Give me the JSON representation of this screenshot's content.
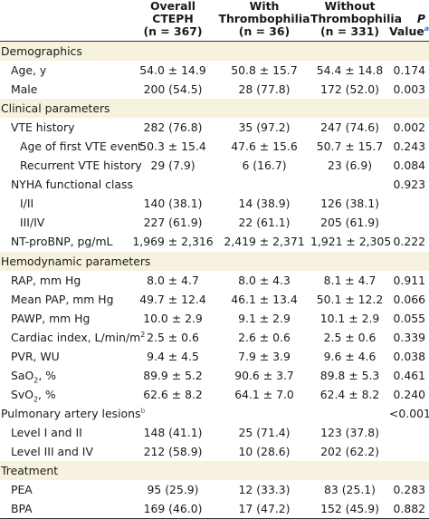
{
  "headers": [
    {
      "line1": "Overall",
      "line2": "CTEPH",
      "line3": "(n = 367)"
    },
    {
      "line1": "With",
      "line2": "Thrombophilia",
      "line3": "(n = 36)"
    },
    {
      "line1": "Without",
      "line2": "Thrombophilia",
      "line3": "(n = 331)"
    }
  ],
  "pvalue_header": {
    "italic": "P",
    "rest": " Value",
    "sup": "a"
  },
  "rows": [
    {
      "type": "section",
      "label": "Demographics"
    },
    {
      "type": "data",
      "indent": 1,
      "label": "Age, y",
      "overall": "54.0 ± 14.9",
      "with": "50.8 ± 15.7",
      "without": "54.4 ± 14.8",
      "p": "0.174"
    },
    {
      "type": "data",
      "indent": 1,
      "label": "Male",
      "overall": "200 (54.5)",
      "with": "28 (77.8)",
      "without": "172 (52.0)",
      "p": "0.003"
    },
    {
      "type": "section",
      "label": "Clinical parameters"
    },
    {
      "type": "data",
      "indent": 1,
      "label": "VTE history",
      "overall": "282 (76.8)",
      "with": "35 (97.2)",
      "without": "247 (74.6)",
      "p": "0.002"
    },
    {
      "type": "data",
      "indent": 2,
      "label": "Age of first VTE event",
      "overall": "50.3 ± 15.4",
      "with": "47.6 ± 15.6",
      "without": "50.7 ± 15.7",
      "p": "0.243"
    },
    {
      "type": "data",
      "indent": 2,
      "label": "Recurrent VTE history",
      "overall": "29 (7.9)",
      "with": "6 (16.7)",
      "without": "23 (6.9)",
      "p": "0.084"
    },
    {
      "type": "data",
      "indent": 1,
      "label": "NYHA functional class",
      "overall": "",
      "with": "",
      "without": "",
      "p": "0.923"
    },
    {
      "type": "data",
      "indent": 2,
      "label": "I/II",
      "overall": "140 (38.1)",
      "with": "14 (38.9)",
      "without": "126 (38.1)",
      "p": ""
    },
    {
      "type": "data",
      "indent": 2,
      "label": "III/IV",
      "overall": "227 (61.9)",
      "with": "22 (61.1)",
      "without": "205 (61.9)",
      "p": ""
    },
    {
      "type": "data",
      "indent": 1,
      "label": "NT-proBNP, pg/mL",
      "overall": "1,969 ± 2,316",
      "with": "2,419 ± 2,371",
      "without": "1,921 ± 2,305",
      "p": "0.222"
    },
    {
      "type": "section",
      "label": "Hemodynamic parameters"
    },
    {
      "type": "data",
      "indent": 1,
      "label": "RAP, mm Hg",
      "overall": "8.0 ± 4.7",
      "with": "8.0 ± 4.3",
      "without": "8.1 ± 4.7",
      "p": "0.911"
    },
    {
      "type": "data",
      "indent": 1,
      "label": "Mean PAP, mm Hg",
      "overall": "49.7 ± 12.4",
      "with": "46.1 ± 13.4",
      "without": "50.1 ± 12.2",
      "p": "0.066"
    },
    {
      "type": "data",
      "indent": 1,
      "label": "PAWP, mm Hg",
      "overall": "10.0 ± 2.9",
      "with": "9.1 ± 2.9",
      "without": "10.1 ± 2.9",
      "p": "0.055"
    },
    {
      "type": "data",
      "indent": 1,
      "label": "Cardiac index, L/min/m",
      "sup": "2",
      "overall": "2.5 ± 0.6",
      "with": "2.6 ± 0.6",
      "without": "2.5 ± 0.6",
      "p": "0.339"
    },
    {
      "type": "data",
      "indent": 1,
      "label": "PVR, WU",
      "overall": "9.4 ± 4.5",
      "with": "7.9 ± 3.9",
      "without": "9.6 ± 4.6",
      "p": "0.038"
    },
    {
      "type": "data",
      "indent": 1,
      "label": "SaO",
      "sub": "2",
      "label_suffix": ", %",
      "overall": "89.9 ± 5.2",
      "with": "90.6 ± 3.7",
      "without": "89.8 ± 5.3",
      "p": "0.461"
    },
    {
      "type": "data",
      "indent": 1,
      "label": "SvO",
      "sub": "2",
      "label_suffix": ", %",
      "overall": "62.6 ± 8.2",
      "with": "64.1 ± 7.0",
      "without": "62.4 ± 8.2",
      "p": "0.240"
    },
    {
      "type": "data",
      "indent": 0,
      "label": "Pulmonary artery lesions",
      "fn": "b",
      "overall": "",
      "with": "",
      "without": "",
      "p": "<0.001"
    },
    {
      "type": "data",
      "indent": 1,
      "label": "Level I and II",
      "overall": "148 (41.1)",
      "with": "25 (71.4)",
      "without": "123 (37.8)",
      "p": ""
    },
    {
      "type": "data",
      "indent": 1,
      "label": "Level III and IV",
      "overall": "212 (58.9)",
      "with": "10 (28.6)",
      "without": "202 (62.2)",
      "p": ""
    },
    {
      "type": "section",
      "label": "Treatment"
    },
    {
      "type": "data",
      "indent": 1,
      "label": "PEA",
      "overall": "95 (25.9)",
      "with": "12 (33.3)",
      "without": "83 (25.1)",
      "p": "0.283"
    },
    {
      "type": "data",
      "indent": 1,
      "label": "BPA",
      "overall": "169 (46.0)",
      "with": "17 (47.2)",
      "without": "152 (45.9)",
      "p": "0.882"
    }
  ]
}
